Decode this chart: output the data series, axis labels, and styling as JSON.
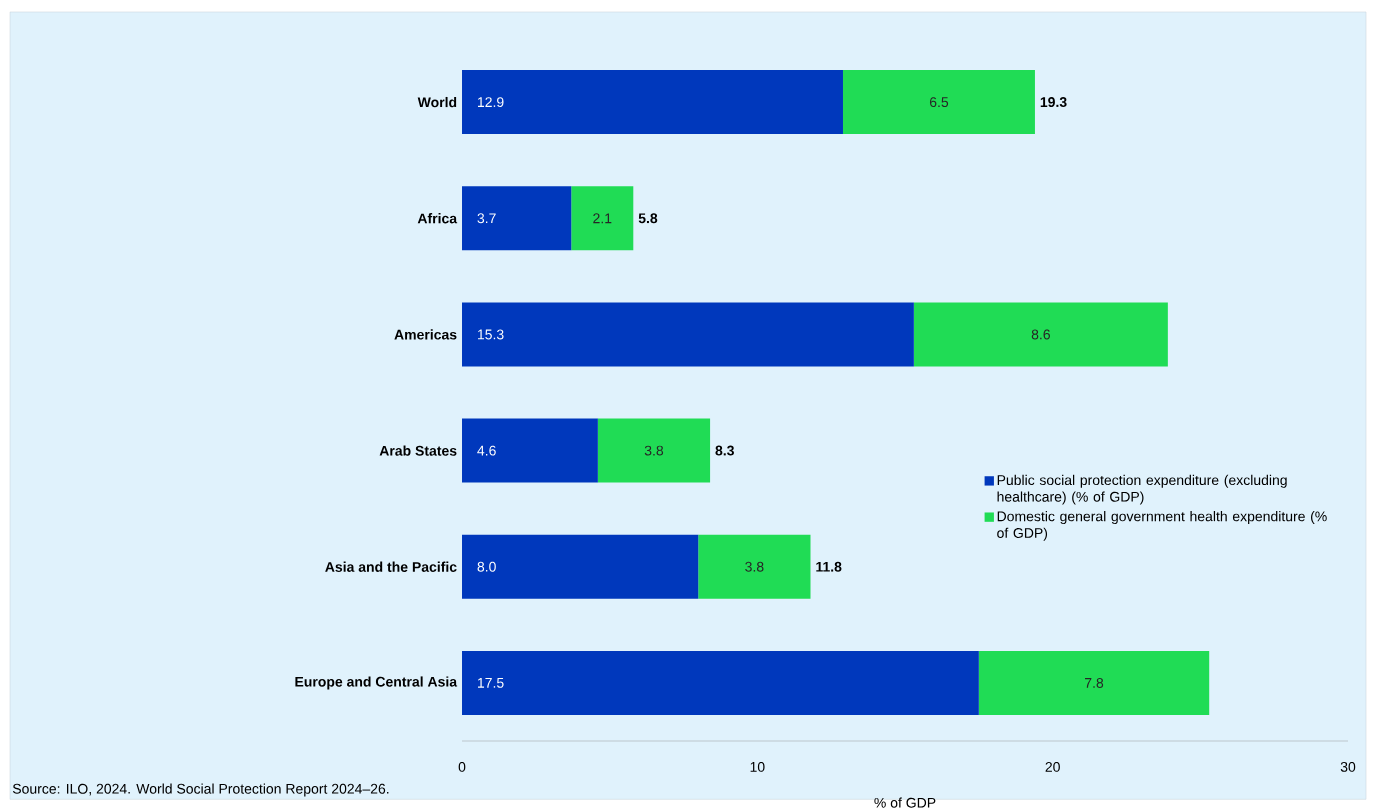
{
  "chart_data": {
    "type": "bar",
    "orientation": "horizontal",
    "stacked": true,
    "categories": [
      "World",
      "Africa",
      "Americas",
      "Arab States",
      "Asia and the Pacific",
      "Europe and Central Asia"
    ],
    "series": [
      {
        "name": "Public social protection expenditure (excluding healthcare) (% of GDP)",
        "color": "#0038bc",
        "values": [
          12.9,
          3.7,
          15.3,
          4.6,
          8.0,
          17.5
        ],
        "value_labels": [
          "12.9",
          "3.7",
          "15.3",
          "4.6",
          "8.0",
          "17.5"
        ]
      },
      {
        "name": "Domestic general government health expenditure (% of GDP)",
        "color": "#20dc55",
        "values": [
          6.5,
          2.1,
          8.6,
          3.8,
          3.8,
          7.8
        ],
        "value_labels": [
          "6.5",
          "2.1",
          "8.6",
          "3.8",
          "3.8",
          "7.8"
        ]
      }
    ],
    "totals": [
      "19.3",
      "5.8",
      null,
      "8.3",
      "11.8",
      null
    ],
    "xlabel": "% of GDP",
    "xlim": [
      0,
      30
    ],
    "xticks": [
      0,
      10,
      20,
      30
    ],
    "legend": "right",
    "annotations": [
      "Source: ILO, 2024. World Social Protection Report 2024–26."
    ]
  }
}
